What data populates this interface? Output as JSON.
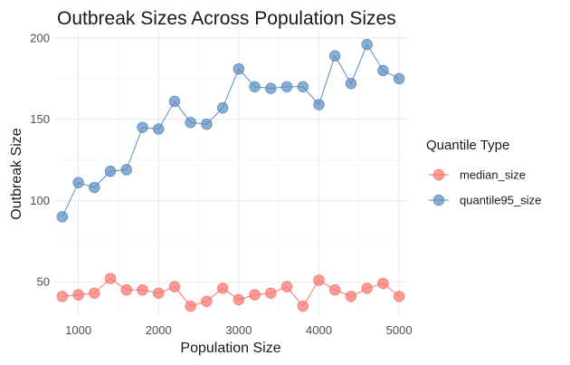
{
  "chart_data": {
    "type": "line",
    "title": "Outbreak Sizes Across Population Sizes",
    "xlabel": "Population Size",
    "ylabel": "Outbreak Size",
    "xlim": [
      700,
      5100
    ],
    "ylim": [
      30,
      205
    ],
    "x_ticks": [
      1000,
      2000,
      3000,
      4000,
      5000
    ],
    "y_ticks": [
      50,
      100,
      150,
      200
    ],
    "grid": true,
    "legend_title": "Quantile Type",
    "legend_position": "right",
    "x": [
      800,
      1000,
      1200,
      1400,
      1600,
      1800,
      2000,
      2200,
      2400,
      2600,
      2800,
      3000,
      3200,
      3400,
      3600,
      3800,
      4000,
      4200,
      4400,
      4600,
      4800,
      5000
    ],
    "series": [
      {
        "name": "median_size",
        "color": "#F8766D",
        "values": [
          41,
          42,
          43,
          52,
          45,
          45,
          43,
          47,
          35,
          38,
          46,
          39,
          42,
          43,
          47,
          35,
          51,
          45,
          41,
          46,
          49,
          41
        ]
      },
      {
        "name": "quantile95_size",
        "color": "#5B8DBE",
        "values": [
          90,
          111,
          108,
          118,
          119,
          145,
          144,
          161,
          148,
          147,
          157,
          181,
          170,
          169,
          170,
          170,
          159,
          189,
          172,
          196,
          180,
          175
        ]
      }
    ]
  }
}
